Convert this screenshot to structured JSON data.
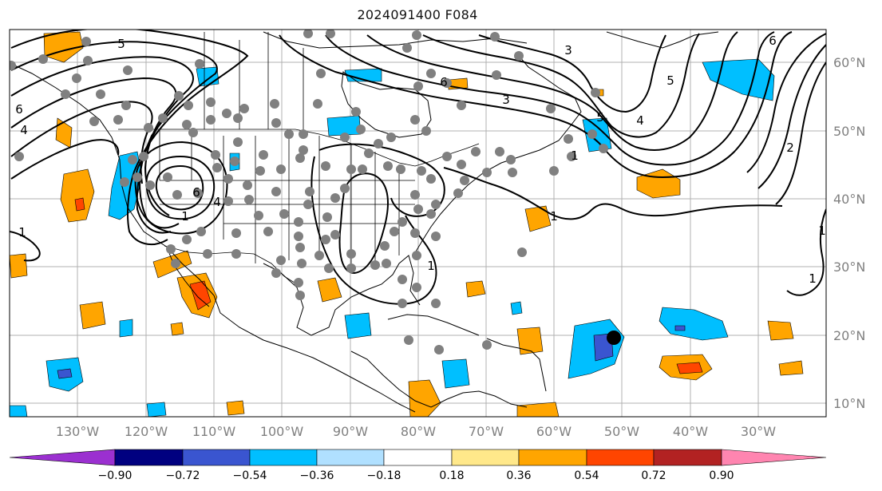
{
  "title": "2024091400 F084",
  "longitude_labels": [
    "130°W",
    "120°W",
    "110°W",
    "100°W",
    "90°W",
    "80°W",
    "70°W",
    "60°W",
    "50°W",
    "40°W",
    "30°W"
  ],
  "latitude_labels": [
    "60°N",
    "50°N",
    "40°N",
    "30°N",
    "20°N",
    "10°N"
  ],
  "colorbar": {
    "tick_labels": [
      "−0.90",
      "−0.72",
      "−0.54",
      "−0.36",
      "−0.18",
      "0.18",
      "0.36",
      "0.54",
      "0.72",
      "0.90"
    ],
    "colors": [
      "#9b30d0",
      "#000080",
      "#3a55d0",
      "#00bfff",
      "#b0e0ff",
      "#ffffff",
      "#ffe88a",
      "#ffa500",
      "#ff4500",
      "#b22222",
      "#ff85b0"
    ]
  },
  "contour_labels": [
    "5",
    "6",
    "3",
    "6",
    "5",
    "4",
    "6",
    "4",
    "5",
    "3",
    "6",
    "4",
    "2",
    "1",
    "1",
    "1",
    "1",
    "1",
    "1",
    "1"
  ],
  "colors": {
    "grid": "#b0b0b0",
    "axis_label": "#808080",
    "station": "#808080",
    "contour": "#000000"
  }
}
